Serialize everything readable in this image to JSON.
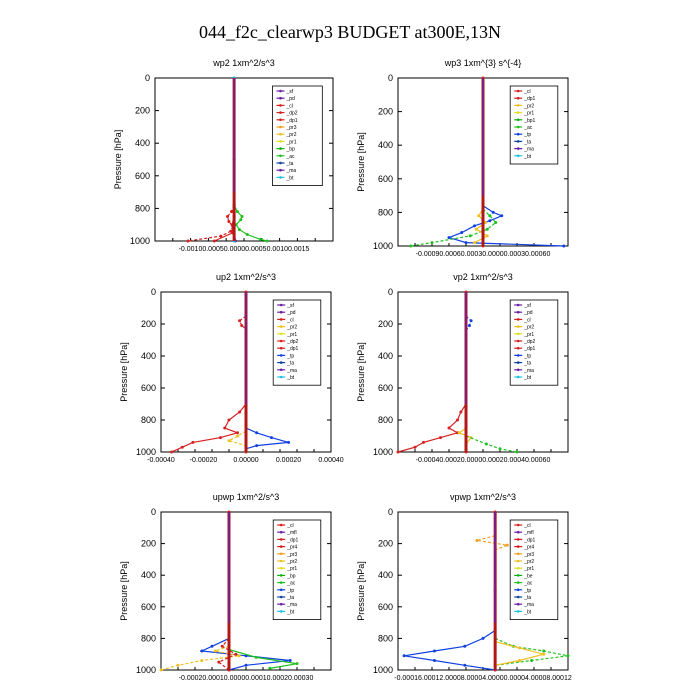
{
  "figure_title": "044_f2c_clearwp3  BUDGET at300E,13N",
  "colors": {
    "sf": "#6a1fa6",
    "pd": "#6a1fa6",
    "cl": "#d62020",
    "dp2": "#d62020",
    "dp1": "#d62020",
    "pr3": "#f0a020",
    "pr2": "#f0c020",
    "pr1": "#e0e020",
    "bp": "#10b010",
    "bp1": "#10b010",
    "ac": "#20c020",
    "tp": "#1040e0",
    "ta": "#1040a0",
    "ma": "#6a1fa6",
    "bt": "#20c0e0",
    "mfl": "#6a1fa6",
    "pr4": "#d62020",
    "be": "#10b010"
  },
  "chart_data": [
    {
      "type": "line",
      "title": "wp2   1xm^2/s^3",
      "ylabel": "Pressure [hPa]",
      "ylim": [
        1000,
        0
      ],
      "yticks": [
        0,
        200,
        400,
        600,
        800,
        1000
      ],
      "xlim": [
        -0.0012,
        0.0015
      ],
      "xtick_labels": [
        "-0.00100.00050.00000.00050.00100.0015"
      ],
      "legend": [
        "sf",
        "pd",
        "cl",
        "dp2",
        "dp1",
        "pr3",
        "pr2",
        "pr1",
        "bp",
        "ac",
        "ta",
        "ma",
        "bt"
      ],
      "series": [
        {
          "name": "ac",
          "pressure": [
            780,
            820,
            850,
            870,
            900,
            930,
            960,
            990,
            1000
          ],
          "values": [
            0,
            5e-05,
            0.00012,
            0.0001,
            3e-05,
            8e-05,
            0.0002,
            0.0004,
            0.0005
          ]
        },
        {
          "name": "cl",
          "pressure": [
            780,
            820,
            850,
            880,
            910,
            940,
            970,
            1000
          ],
          "values": [
            0,
            -4e-05,
            -0.0001,
            -8e-05,
            -2e-05,
            -5e-05,
            -0.0002,
            -0.0007
          ]
        },
        {
          "name": "dp2",
          "pressure": [
            850,
            900,
            950,
            1000
          ],
          "values": [
            0,
            -3e-05,
            -2e-05,
            -0.0003
          ]
        },
        {
          "name": "pd",
          "pressure": [
            0,
            500,
            900,
            1000
          ],
          "values": [
            0,
            0,
            0,
            2e-05
          ]
        },
        {
          "name": "bt",
          "pressure": [
            0,
            500,
            1000
          ],
          "values": [
            0,
            0,
            0
          ]
        }
      ]
    },
    {
      "type": "line",
      "title": "wp3   1xm^{3} s^{-4}",
      "ylabel": "Pressure [hPa]",
      "ylim": [
        1000,
        0
      ],
      "yticks": [
        0,
        200,
        400,
        600,
        800,
        1000
      ],
      "xlim": [
        -0.001,
        0.001
      ],
      "xtick_labels": [
        "-0.00090.00060.00030.00000.00030.00060"
      ],
      "legend": [
        "cl",
        "dp1",
        "pr2",
        "pr1",
        "bp1",
        "ac",
        "tp",
        "ta",
        "ma",
        "bt"
      ],
      "series": [
        {
          "name": "tp",
          "pressure": [
            760,
            800,
            820,
            850,
            880,
            920,
            950,
            980,
            1000
          ],
          "values": [
            0,
            0.00012,
            0.00022,
            8e-05,
            -0.0001,
            -0.00025,
            -0.0004,
            -0.0002,
            0.00095
          ]
        },
        {
          "name": "ac",
          "pressure": [
            780,
            820,
            860,
            900,
            940,
            980,
            1000
          ],
          "values": [
            0,
            8e-05,
            0.00015,
            5e-05,
            -0.00015,
            -0.0006,
            -0.00085
          ]
        },
        {
          "name": "pr2",
          "pressure": [
            780,
            820,
            860,
            900,
            940,
            980
          ],
          "values": [
            0,
            -5e-05,
            3e-05,
            -8e-05,
            5e-05,
            -0.0001
          ]
        },
        {
          "name": "cl",
          "pressure": [
            0,
            500,
            1000
          ],
          "values": [
            0,
            0,
            0
          ]
        }
      ]
    },
    {
      "type": "line",
      "title": "up2   1xm^2/s^3",
      "ylabel": "Pressure [hPa]",
      "ylim": [
        1000,
        0
      ],
      "yticks": [
        0,
        200,
        400,
        600,
        800,
        1000
      ],
      "xlim": [
        -0.0004,
        0.0004
      ],
      "xtick_labels": [
        "-0.00040",
        "-0.00020",
        "0.00000",
        "0.00020",
        "0.00040"
      ],
      "legend": [
        "sf",
        "pd",
        "cl",
        "pr2",
        "pr1",
        "dp2",
        "dp1",
        "tp",
        "ta",
        "ma",
        "bt"
      ],
      "series": [
        {
          "name": "dp1",
          "pressure": [
            700,
            750,
            800,
            850,
            880,
            910,
            940,
            970,
            1000
          ],
          "values": [
            0,
            -3e-05,
            -8e-05,
            -0.0001,
            -4e-05,
            -0.00012,
            -0.00025,
            -0.0003,
            -0.00035
          ]
        },
        {
          "name": "dp2",
          "pressure": [
            150,
            180,
            210,
            230
          ],
          "values": [
            0,
            -3e-05,
            -2e-05,
            0
          ]
        },
        {
          "name": "tp",
          "pressure": [
            850,
            880,
            910,
            940,
            960,
            980
          ],
          "values": [
            0,
            5e-05,
            0.00012,
            0.0002,
            5e-05,
            0
          ]
        },
        {
          "name": "pr2",
          "pressure": [
            870,
            900,
            930,
            960
          ],
          "values": [
            0,
            -4e-05,
            -8e-05,
            0
          ]
        },
        {
          "name": "cl",
          "pressure": [
            0,
            500,
            1000
          ],
          "values": [
            0,
            0,
            0
          ]
        }
      ]
    },
    {
      "type": "line",
      "title": "vp2   1xm^2/s^3",
      "ylabel": "Pressure [hPa]",
      "ylim": [
        1000,
        0
      ],
      "yticks": [
        0,
        200,
        400,
        600,
        800,
        1000
      ],
      "xlim": [
        -0.0004,
        0.0006
      ],
      "xtick_labels": [
        "-0.00040.00020.00000.00020.00040.00060"
      ],
      "legend": [
        "sf",
        "pd",
        "cl",
        "pr2",
        "pr1",
        "dp2",
        "dp1",
        "tp",
        "ta",
        "ma",
        "bt"
      ],
      "series": [
        {
          "name": "dp1",
          "pressure": [
            700,
            750,
            800,
            850,
            880,
            910,
            940,
            970,
            1000
          ],
          "values": [
            0,
            -3e-05,
            -5e-05,
            -0.0001,
            -5e-05,
            -0.00015,
            -0.00025,
            -0.0003,
            -0.0004
          ]
        },
        {
          "name": "tp",
          "pressure": [
            150,
            180,
            210,
            240
          ],
          "values": [
            0,
            3e-05,
            2e-05,
            0
          ]
        },
        {
          "name": "pr2",
          "pressure": [
            850,
            880,
            910,
            950
          ],
          "values": [
            0,
            -4e-05,
            3e-05,
            0
          ]
        },
        {
          "name": "ac",
          "pressure": [
            900,
            950,
            980,
            1000
          ],
          "values": [
            0,
            0.00012,
            0.0002,
            0.0003
          ]
        },
        {
          "name": "cl",
          "pressure": [
            0,
            500,
            1000
          ],
          "values": [
            0,
            0,
            0
          ]
        }
      ]
    },
    {
      "type": "line",
      "title": "upwp   1xm^2/s^3",
      "ylabel": "Pressure [hPa]",
      "ylim": [
        1000,
        0
      ],
      "yticks": [
        0,
        200,
        400,
        600,
        800,
        1000
      ],
      "xlim": [
        -0.0002,
        0.0003
      ],
      "xtick_labels": [
        "-0.00020.00010.00000.00010.00020.00030"
      ],
      "legend": [
        "cl",
        "mfl",
        "dp1",
        "pr4",
        "pr3",
        "pr2",
        "pr1",
        "bp",
        "ac",
        "tp",
        "ta",
        "ma",
        "bt"
      ],
      "series": [
        {
          "name": "tp",
          "pressure": [
            800,
            850,
            880,
            910,
            940,
            970,
            1000
          ],
          "values": [
            0,
            -5e-05,
            -8e-05,
            5e-05,
            0.00018,
            5e-05,
            0
          ]
        },
        {
          "name": "pr2",
          "pressure": [
            850,
            880,
            910,
            940,
            970,
            1000
          ],
          "values": [
            0,
            -4e-05,
            3e-05,
            -8e-05,
            -0.00015,
            -0.0002
          ]
        },
        {
          "name": "ac",
          "pressure": [
            870,
            920,
            960,
            990
          ],
          "values": [
            0,
            8e-05,
            0.0002,
            0.00012
          ]
        },
        {
          "name": "dp1",
          "pressure": [
            800,
            850,
            900,
            950,
            1000
          ],
          "values": [
            0,
            -2e-05,
            2e-05,
            -3e-05,
            0
          ]
        },
        {
          "name": "cl",
          "pressure": [
            0,
            500,
            1000
          ],
          "values": [
            0,
            0,
            0
          ]
        }
      ]
    },
    {
      "type": "line",
      "title": "vpwp   1xm^2/s^3",
      "ylabel": "Pressure [hPa]",
      "ylim": [
        1000,
        0
      ],
      "yticks": [
        0,
        200,
        400,
        600,
        800,
        1000
      ],
      "xlim": [
        -0.00016,
        0.00012
      ],
      "xtick_labels": [
        "-0.00016.00012.00008.00004.00000.00004.00008.00012"
      ],
      "legend": [
        "cl",
        "mfl",
        "dp1",
        "pr4",
        "pr3",
        "pr2",
        "pr1",
        "be",
        "ac",
        "tp",
        "ta",
        "ma",
        "bt"
      ],
      "series": [
        {
          "name": "tp",
          "pressure": [
            750,
            800,
            850,
            880,
            910,
            940,
            970,
            1000
          ],
          "values": [
            0,
            -2e-05,
            -5e-05,
            -0.0001,
            -0.00015,
            -0.0001,
            -5e-05,
            0
          ]
        },
        {
          "name": "ac",
          "pressure": [
            800,
            850,
            880,
            910,
            940,
            970
          ],
          "values": [
            0,
            3e-05,
            8e-05,
            0.00012,
            6e-05,
            0
          ]
        },
        {
          "name": "pr2",
          "pressure": [
            820,
            860,
            900,
            940,
            970
          ],
          "values": [
            0,
            4e-05,
            8e-05,
            4e-05,
            0
          ]
        },
        {
          "name": "pr3",
          "pressure": [
            150,
            180,
            210,
            240
          ],
          "values": [
            0,
            -3e-05,
            2e-05,
            0
          ]
        },
        {
          "name": "cl",
          "pressure": [
            0,
            500,
            1000
          ],
          "values": [
            0,
            0,
            0
          ]
        }
      ]
    }
  ]
}
